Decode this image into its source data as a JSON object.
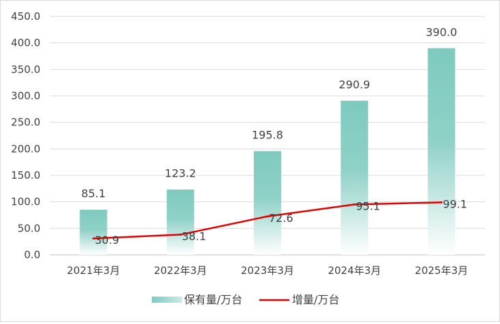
{
  "chart_data": {
    "type": "bar+line",
    "categories": [
      "2021年3月",
      "2022年3月",
      "2023年3月",
      "2024年3月",
      "2025年3月"
    ],
    "series": [
      {
        "name": "保有量/万台",
        "type": "bar",
        "values": [
          85.1,
          123.2,
          195.8,
          290.9,
          390.0
        ],
        "labels": [
          "85.1",
          "123.2",
          "195.8",
          "290.9",
          "390.0"
        ],
        "color": "#7fcabf"
      },
      {
        "name": "增量/万台",
        "type": "line",
        "values": [
          30.9,
          38.1,
          72.6,
          95.1,
          99.1
        ],
        "labels": [
          "30.9",
          "38.1",
          "72.6",
          "95.1",
          "99.1"
        ],
        "color": "#e00000"
      }
    ],
    "y_ticks": [
      "0.0",
      "50.0",
      "100.0",
      "150.0",
      "200.0",
      "250.0",
      "300.0",
      "350.0",
      "400.0",
      "450.0"
    ],
    "ylim": [
      0,
      450
    ],
    "grid": true,
    "legend_position": "bottom"
  }
}
